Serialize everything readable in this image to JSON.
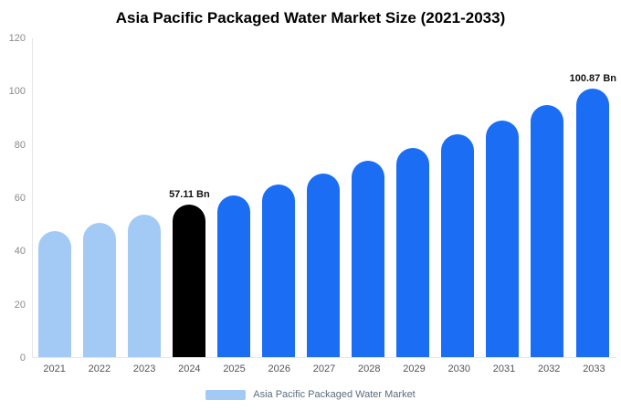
{
  "chart_data": {
    "type": "bar",
    "title": "Asia Pacific Packaged Water Market Size (2021-2033)",
    "categories": [
      "2021",
      "2022",
      "2023",
      "2024",
      "2025",
      "2026",
      "2027",
      "2028",
      "2029",
      "2030",
      "2031",
      "2032",
      "2033"
    ],
    "values": [
      47.2,
      50.3,
      53.6,
      57.11,
      60.8,
      64.8,
      69.0,
      73.6,
      78.4,
      83.5,
      88.9,
      94.7,
      100.87
    ],
    "bar_colors": [
      "#a3c9f5",
      "#a3c9f5",
      "#a3c9f5",
      "#000000",
      "#1b6ef3",
      "#1b6ef3",
      "#1b6ef3",
      "#1b6ef3",
      "#1b6ef3",
      "#1b6ef3",
      "#1b6ef3",
      "#1b6ef3",
      "#1b6ef3"
    ],
    "annotations": [
      {
        "index": 3,
        "text": "57.11 Bn"
      },
      {
        "index": 12,
        "text": "100.87 Bn"
      }
    ],
    "ylim": [
      0,
      120
    ],
    "yticks": [
      0,
      20,
      40,
      60,
      80,
      100,
      120
    ],
    "xlabel": "",
    "ylabel": "",
    "grid": false,
    "legend": {
      "label": "Asia Pacific Packaged Water Market",
      "swatch_color": "#a3c9f5",
      "position": "bottom"
    }
  }
}
